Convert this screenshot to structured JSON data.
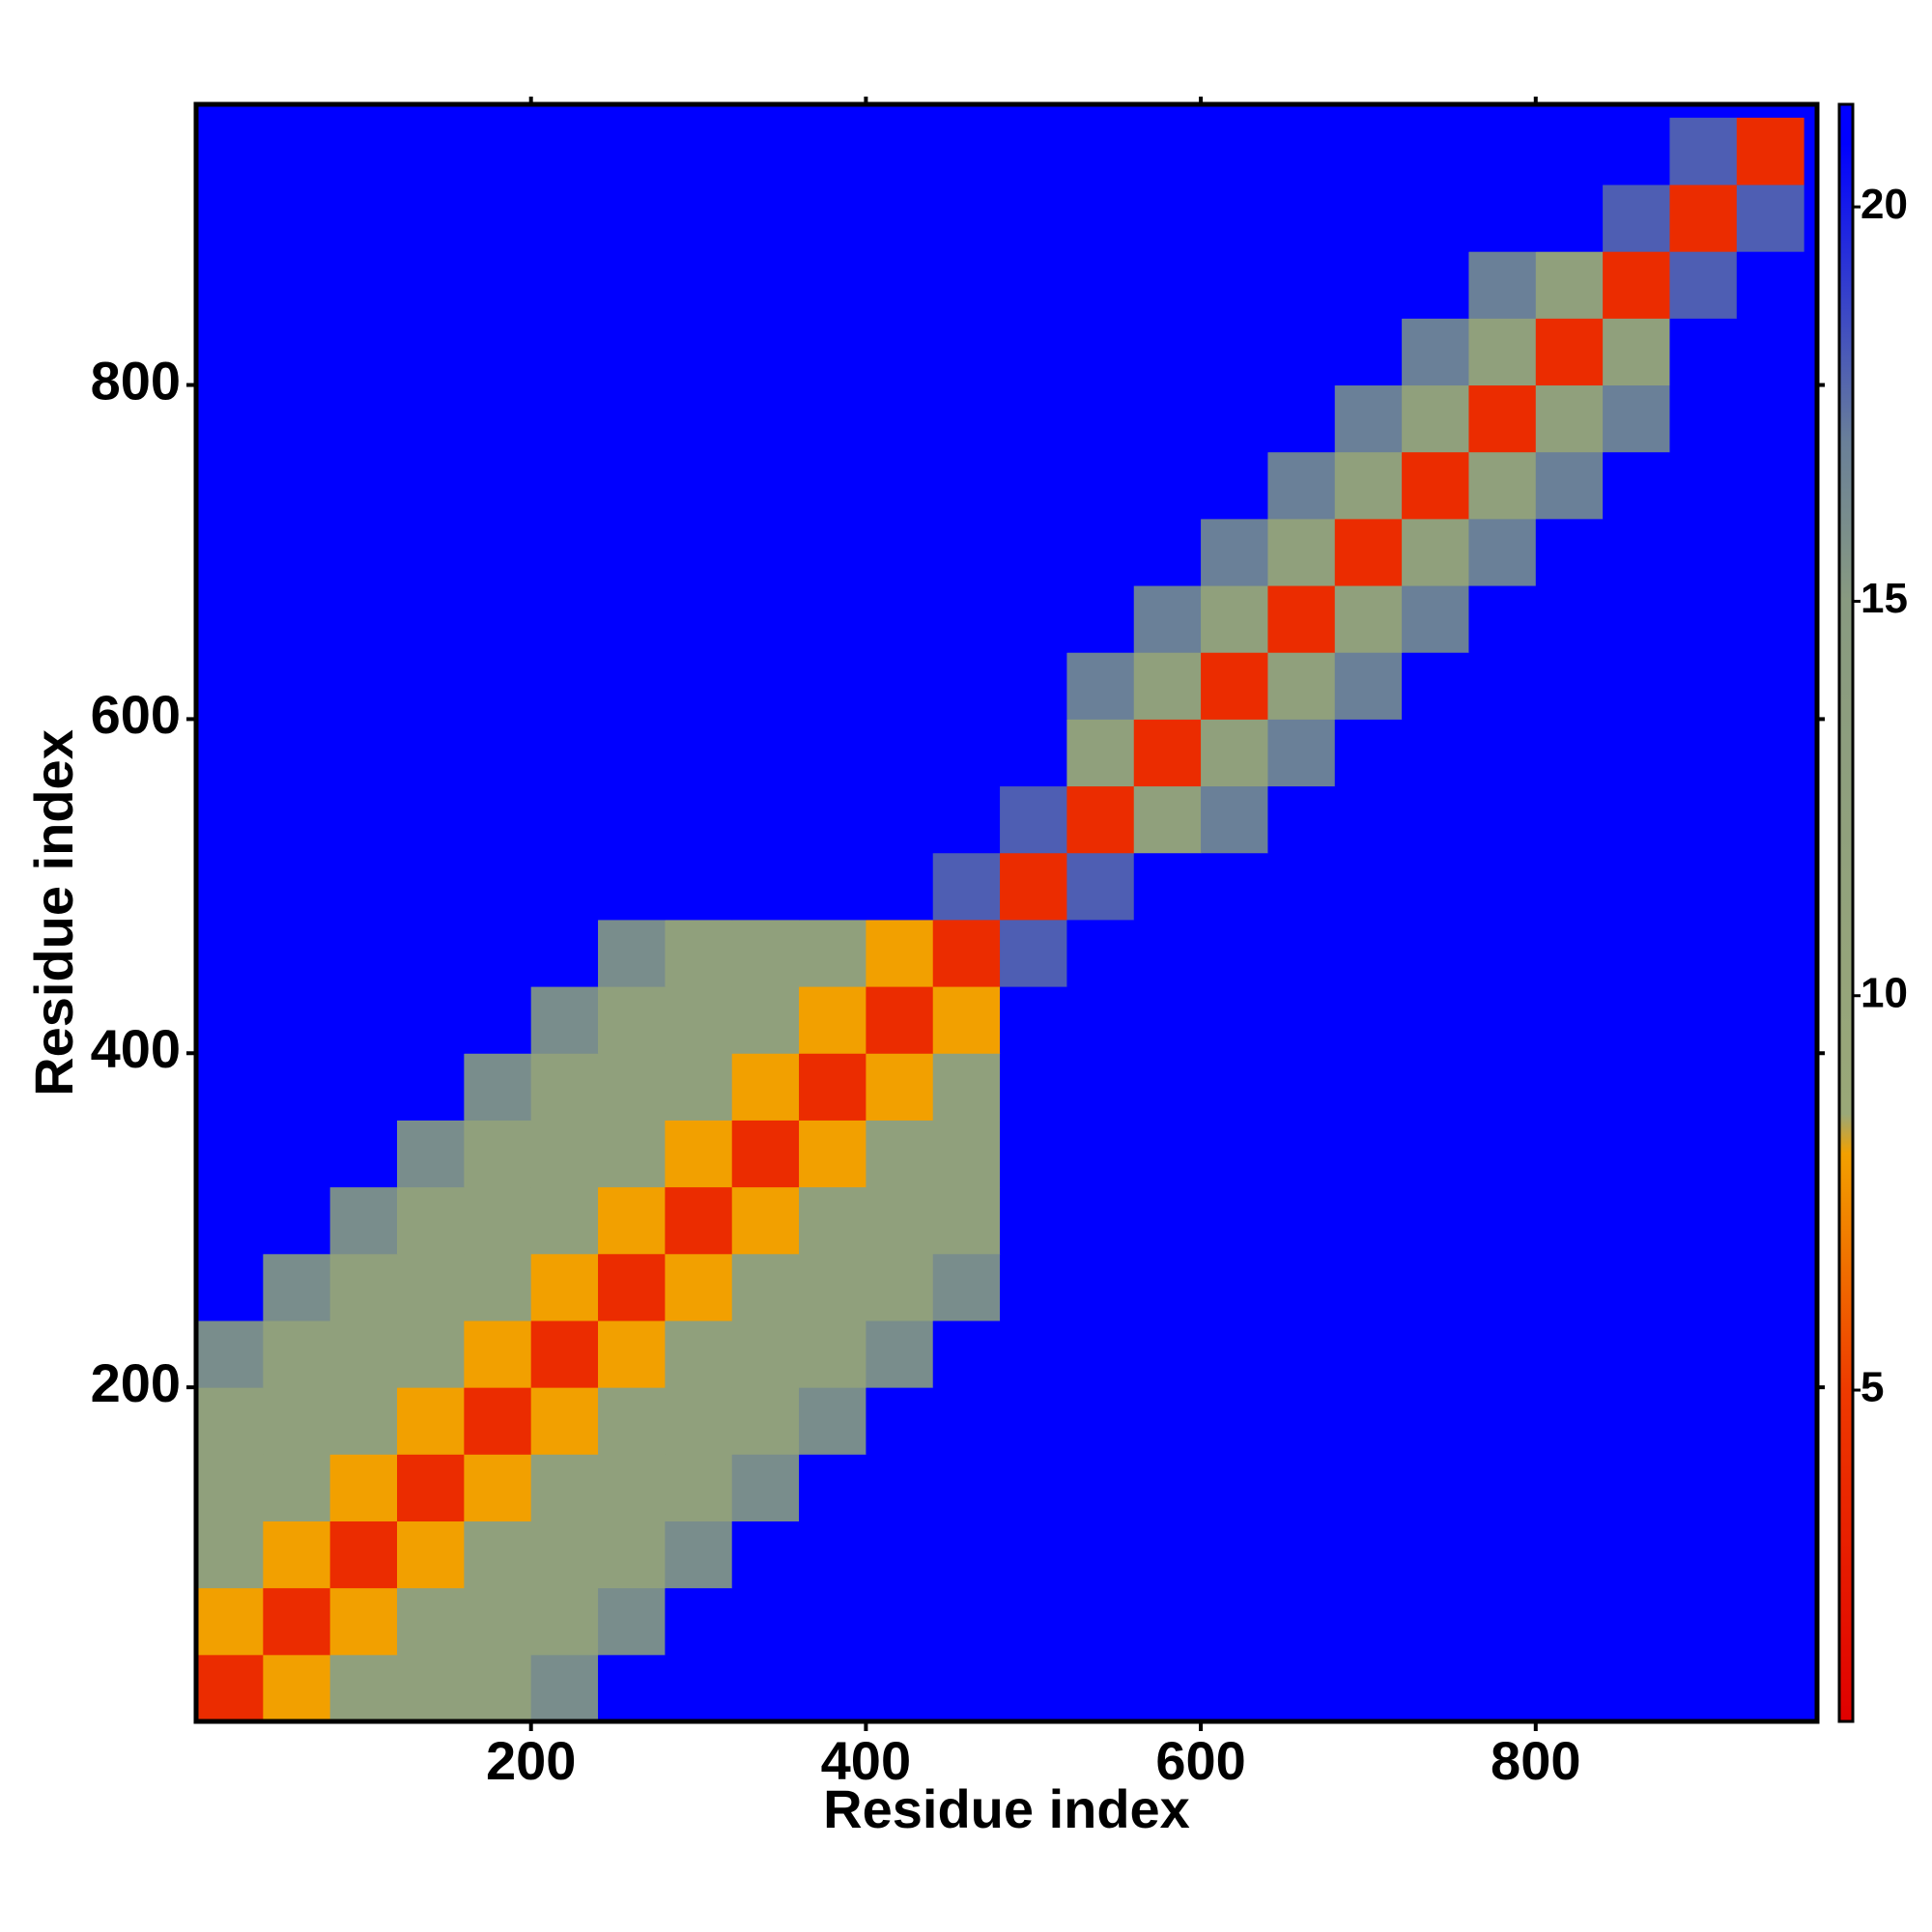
{
  "chart_data": {
    "type": "heatmap",
    "x_label": "Residue index",
    "y_label": "Residue index",
    "x": [
      0,
      40,
      80,
      120,
      160,
      200,
      240,
      280,
      320,
      360,
      400,
      440,
      480,
      520,
      560,
      600,
      640,
      680,
      720,
      760,
      800,
      840,
      880,
      920,
      960
    ],
    "y": [
      0,
      40,
      80,
      120,
      160,
      200,
      240,
      280,
      320,
      360,
      400,
      440,
      480,
      520,
      560,
      600,
      640,
      680,
      720,
      760,
      800,
      840,
      880,
      920,
      960
    ],
    "xlim": [
      0,
      968
    ],
    "ylim": [
      0,
      968
    ],
    "xticks": [
      200,
      400,
      600,
      800
    ],
    "yticks": [
      200,
      400,
      600,
      800
    ],
    "clim": [
      0.8,
      21.3
    ],
    "cticks": [
      5,
      10,
      15,
      20
    ],
    "colorscale": [
      [
        0.8,
        "#e00000"
      ],
      [
        5,
        "#ee3a00"
      ],
      [
        8,
        "#f2a000"
      ],
      [
        8.5,
        "#9aa878"
      ],
      [
        15,
        "#889a80"
      ],
      [
        17,
        "#6a8098"
      ],
      [
        20.8,
        "#0000ff"
      ],
      [
        21.3,
        "#0000ff"
      ]
    ],
    "z": [
      [
        4,
        8,
        12,
        12,
        12,
        16,
        21,
        21,
        21,
        21,
        21,
        21,
        21,
        21,
        21,
        21,
        21,
        21,
        21,
        21,
        21,
        21,
        21,
        21
      ],
      [
        8,
        4,
        8,
        12,
        12,
        12,
        16,
        21,
        21,
        21,
        21,
        21,
        21,
        21,
        21,
        21,
        21,
        21,
        21,
        21,
        21,
        21,
        21,
        21
      ],
      [
        12,
        8,
        4,
        8,
        12,
        12,
        12,
        16,
        21,
        21,
        21,
        21,
        21,
        21,
        21,
        21,
        21,
        21,
        21,
        21,
        21,
        21,
        21,
        21
      ],
      [
        12,
        12,
        8,
        4,
        8,
        12,
        12,
        12,
        16,
        21,
        21,
        21,
        21,
        21,
        21,
        21,
        21,
        21,
        21,
        21,
        21,
        21,
        21,
        21
      ],
      [
        12,
        12,
        12,
        8,
        4,
        8,
        12,
        12,
        12,
        16,
        21,
        21,
        21,
        21,
        21,
        21,
        21,
        21,
        21,
        21,
        21,
        21,
        21,
        21
      ],
      [
        16,
        12,
        12,
        12,
        8,
        4,
        8,
        12,
        12,
        12,
        16,
        21,
        21,
        21,
        21,
        21,
        21,
        21,
        21,
        21,
        21,
        21,
        21,
        21
      ],
      [
        21,
        16,
        12,
        12,
        12,
        8,
        4,
        8,
        12,
        12,
        12,
        16,
        21,
        21,
        21,
        21,
        21,
        21,
        21,
        21,
        21,
        21,
        21,
        21
      ],
      [
        21,
        21,
        16,
        12,
        12,
        12,
        8,
        4,
        8,
        12,
        12,
        12,
        21,
        21,
        21,
        21,
        21,
        21,
        21,
        21,
        21,
        21,
        21,
        21
      ],
      [
        21,
        21,
        21,
        16,
        12,
        12,
        12,
        8,
        4,
        8,
        12,
        12,
        21,
        21,
        21,
        21,
        21,
        21,
        21,
        21,
        21,
        21,
        21,
        21
      ],
      [
        21,
        21,
        21,
        21,
        16,
        12,
        12,
        12,
        8,
        4,
        8,
        12,
        21,
        21,
        21,
        21,
        21,
        21,
        21,
        21,
        21,
        21,
        21,
        21
      ],
      [
        21,
        21,
        21,
        21,
        21,
        16,
        12,
        12,
        12,
        8,
        4,
        8,
        21,
        21,
        21,
        21,
        21,
        21,
        21,
        21,
        21,
        21,
        21,
        21
      ],
      [
        21,
        21,
        21,
        21,
        21,
        21,
        16,
        12,
        12,
        12,
        8,
        4,
        18,
        21,
        21,
        21,
        21,
        21,
        21,
        21,
        21,
        21,
        21,
        21
      ],
      [
        21,
        21,
        21,
        21,
        21,
        21,
        21,
        21,
        21,
        21,
        21,
        18,
        4,
        18,
        21,
        21,
        21,
        21,
        21,
        21,
        21,
        21,
        21,
        21
      ],
      [
        21,
        21,
        21,
        21,
        21,
        21,
        21,
        21,
        21,
        21,
        21,
        21,
        18,
        4,
        12,
        17,
        21,
        21,
        21,
        21,
        21,
        21,
        21,
        21
      ],
      [
        21,
        21,
        21,
        21,
        21,
        21,
        21,
        21,
        21,
        21,
        21,
        21,
        21,
        12,
        4,
        12,
        17,
        21,
        21,
        21,
        21,
        21,
        21,
        21
      ],
      [
        21,
        21,
        21,
        21,
        21,
        21,
        21,
        21,
        21,
        21,
        21,
        21,
        21,
        17,
        12,
        4,
        12,
        17,
        21,
        21,
        21,
        21,
        21,
        21
      ],
      [
        21,
        21,
        21,
        21,
        21,
        21,
        21,
        21,
        21,
        21,
        21,
        21,
        21,
        21,
        17,
        12,
        4,
        12,
        17,
        21,
        21,
        21,
        21,
        21
      ],
      [
        21,
        21,
        21,
        21,
        21,
        21,
        21,
        21,
        21,
        21,
        21,
        21,
        21,
        21,
        21,
        17,
        12,
        4,
        12,
        17,
        21,
        21,
        21,
        21
      ],
      [
        21,
        21,
        21,
        21,
        21,
        21,
        21,
        21,
        21,
        21,
        21,
        21,
        21,
        21,
        21,
        21,
        17,
        12,
        4,
        12,
        17,
        21,
        21,
        21
      ],
      [
        21,
        21,
        21,
        21,
        21,
        21,
        21,
        21,
        21,
        21,
        21,
        21,
        21,
        21,
        21,
        21,
        21,
        17,
        12,
        4,
        12,
        17,
        21,
        21
      ],
      [
        21,
        21,
        21,
        21,
        21,
        21,
        21,
        21,
        21,
        21,
        21,
        21,
        21,
        21,
        21,
        21,
        21,
        21,
        17,
        12,
        4,
        12,
        21,
        21
      ],
      [
        21,
        21,
        21,
        21,
        21,
        21,
        21,
        21,
        21,
        21,
        21,
        21,
        21,
        21,
        21,
        21,
        21,
        21,
        21,
        17,
        12,
        4,
        18,
        21
      ],
      [
        21,
        21,
        21,
        21,
        21,
        21,
        21,
        21,
        21,
        21,
        21,
        21,
        21,
        21,
        21,
        21,
        21,
        21,
        21,
        21,
        21,
        18,
        4,
        18
      ],
      [
        21,
        21,
        21,
        21,
        21,
        21,
        21,
        21,
        21,
        21,
        21,
        21,
        21,
        21,
        21,
        21,
        21,
        21,
        21,
        21,
        21,
        21,
        18,
        4
      ]
    ]
  }
}
